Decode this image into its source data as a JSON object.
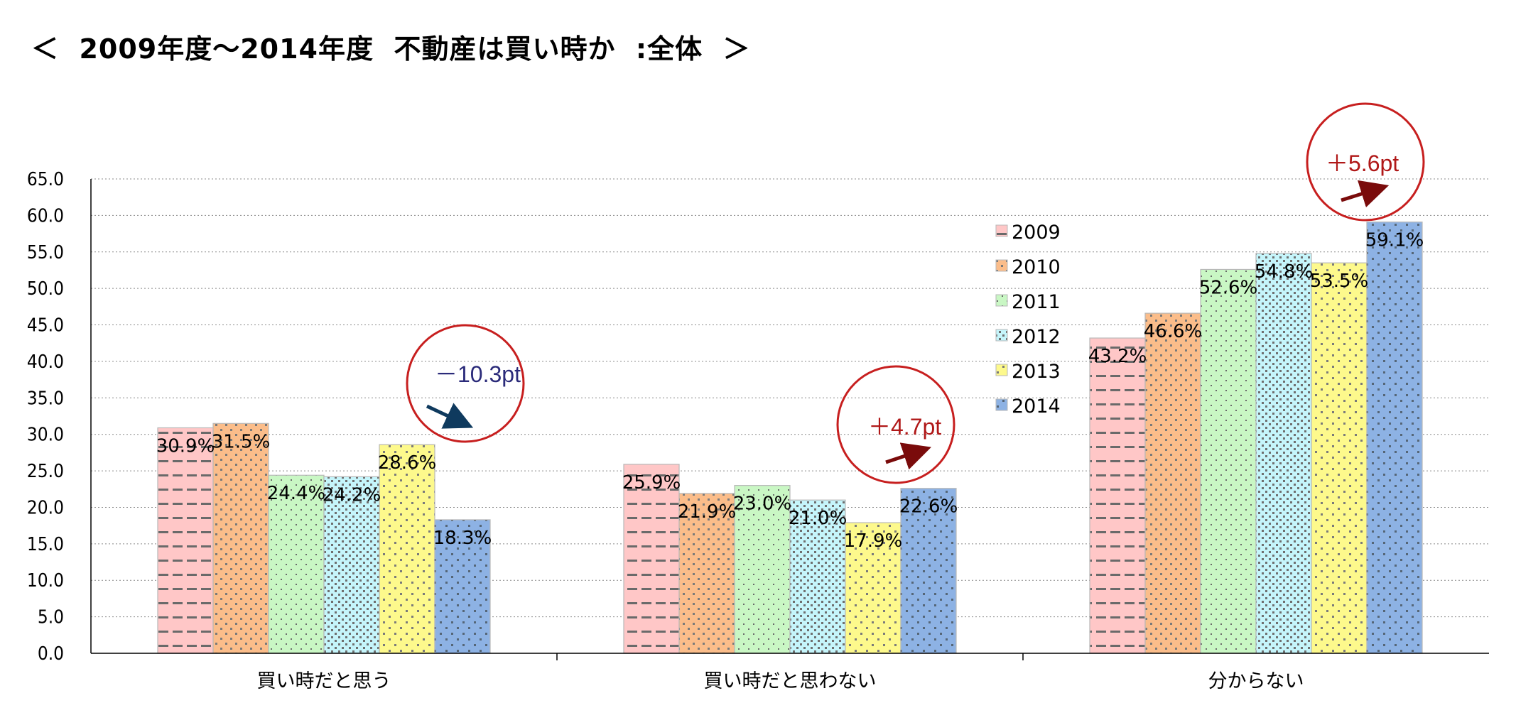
{
  "title": "＜  2009年度～2014年度  不動産は買い時か  :全体  ＞",
  "chart_data": {
    "type": "bar",
    "categories": [
      "買い時だと思う",
      "買い時だと思わない",
      "分からない"
    ],
    "series": [
      {
        "name": "2009",
        "values": [
          30.9,
          25.9,
          43.2
        ],
        "color": "#ffc7c7",
        "pattern": "dash"
      },
      {
        "name": "2010",
        "values": [
          31.5,
          21.9,
          46.6
        ],
        "color": "#fbbd8a",
        "pattern": "dotcluster"
      },
      {
        "name": "2011",
        "values": [
          24.4,
          23.0,
          52.6
        ],
        "color": "#c9f7c4",
        "pattern": "dot"
      },
      {
        "name": "2012",
        "values": [
          24.2,
          21.0,
          54.8
        ],
        "color": "#c5f5fb",
        "pattern": "densedot"
      },
      {
        "name": "2013",
        "values": [
          28.6,
          17.9,
          53.5
        ],
        "color": "#fdf98c",
        "pattern": "dot"
      },
      {
        "name": "2014",
        "values": [
          18.3,
          22.6,
          59.1
        ],
        "color": "#8db2e4",
        "pattern": "dot"
      }
    ],
    "data_labels": [
      [
        "30.9%",
        "25.9%",
        "43.2%"
      ],
      [
        "31.5%",
        "21.9%",
        "46.6%"
      ],
      [
        "24.4%",
        "23.0%",
        "52.6%"
      ],
      [
        "24.2%",
        "21.0%",
        "54.8%"
      ],
      [
        "28.6%",
        "17.9%",
        "53.5%"
      ],
      [
        "18.3%",
        "22.6%",
        "59.1%"
      ]
    ],
    "y_ticks": [
      "0.0",
      "5.0",
      "10.0",
      "15.0",
      "20.0",
      "25.0",
      "30.0",
      "35.0",
      "40.0",
      "45.0",
      "50.0",
      "55.0",
      "60.0",
      "65.0"
    ],
    "ylim": [
      0,
      65
    ],
    "grid": true,
    "legend": "center",
    "annotations": [
      {
        "text": "－10.3pt",
        "category": 0,
        "color": "#2b2b7a",
        "arrow": "down-right"
      },
      {
        "text": "＋4.7pt",
        "category": 1,
        "color": "#b01818",
        "arrow": "up-right"
      },
      {
        "text": "＋5.6pt",
        "category": 2,
        "color": "#b01818",
        "arrow": "up-right"
      }
    ]
  }
}
